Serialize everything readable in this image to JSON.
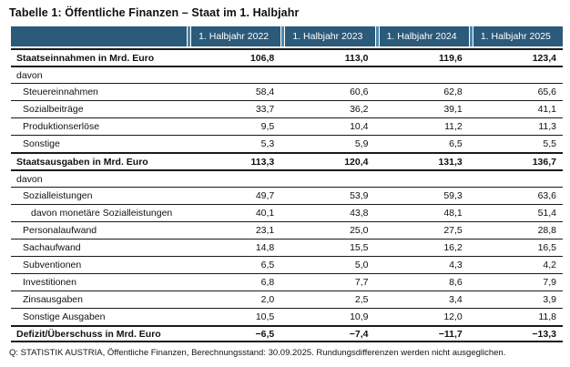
{
  "title": "Tabelle 1: Öffentliche Finanzen – Staat im 1. Halbjahr",
  "columns": [
    "1. Halbjahr 2022",
    "1. Halbjahr 2023",
    "1. Halbjahr 2024",
    "1. Halbjahr 2025"
  ],
  "rows": [
    {
      "label": "Staatseinnahmen in Mrd. Euro",
      "values": [
        "106,8",
        "113,0",
        "119,6",
        "123,4"
      ]
    },
    {
      "label": "davon",
      "values": [
        "",
        "",
        "",
        ""
      ]
    },
    {
      "label": "Steuereinnahmen",
      "values": [
        "58,4",
        "60,6",
        "62,8",
        "65,6"
      ]
    },
    {
      "label": "Sozialbeiträge",
      "values": [
        "33,7",
        "36,2",
        "39,1",
        "41,1"
      ]
    },
    {
      "label": "Produktionserlöse",
      "values": [
        "9,5",
        "10,4",
        "11,2",
        "11,3"
      ]
    },
    {
      "label": "Sonstige",
      "values": [
        "5,3",
        "5,9",
        "6,5",
        "5,5"
      ]
    },
    {
      "label": "Staatsausgaben in Mrd. Euro",
      "values": [
        "113,3",
        "120,4",
        "131,3",
        "136,7"
      ]
    },
    {
      "label": "davon",
      "values": [
        "",
        "",
        "",
        ""
      ]
    },
    {
      "label": "Sozialleistungen",
      "values": [
        "49,7",
        "53,9",
        "59,3",
        "63,6"
      ]
    },
    {
      "label": "davon monetäre Sozialleistungen",
      "values": [
        "40,1",
        "43,8",
        "48,1",
        "51,4"
      ]
    },
    {
      "label": "Personalaufwand",
      "values": [
        "23,1",
        "25,0",
        "27,5",
        "28,8"
      ]
    },
    {
      "label": "Sachaufwand",
      "values": [
        "14,8",
        "15,5",
        "16,2",
        "16,5"
      ]
    },
    {
      "label": "Subventionen",
      "values": [
        "6,5",
        "5,0",
        "4,3",
        "4,2"
      ]
    },
    {
      "label": "Investitionen",
      "values": [
        "6,8",
        "7,7",
        "8,6",
        "7,9"
      ]
    },
    {
      "label": "Zinsausgaben",
      "values": [
        "2,0",
        "2,5",
        "3,4",
        "3,9"
      ]
    },
    {
      "label": "Sonstige Ausgaben",
      "values": [
        "10,5",
        "10,9",
        "12,0",
        "11,8"
      ]
    },
    {
      "label": "Defizit/Überschuss in Mrd. Euro",
      "values": [
        "−6,5",
        "−7,4",
        "−11,7",
        "−13,3"
      ]
    }
  ],
  "footnote": "Q: STATISTIK AUSTRIA, Öffentliche Finanzen, Berechnungsstand: 30.09.2025. Rundungsdifferenzen werden nicht ausgeglichen.",
  "colors": {
    "header_bg": "#2B5A7A",
    "header_divider": "#4C87AE"
  },
  "chart_data": {
    "type": "table",
    "title": "Tabelle 1: Öffentliche Finanzen – Staat im 1. Halbjahr",
    "categories": [
      "1. Halbjahr 2022",
      "1. Halbjahr 2023",
      "1. Halbjahr 2024",
      "1. Halbjahr 2025"
    ],
    "series": [
      {
        "name": "Staatseinnahmen in Mrd. Euro",
        "values": [
          106.8,
          113.0,
          119.6,
          123.4
        ]
      },
      {
        "name": "Steuereinnahmen",
        "values": [
          58.4,
          60.6,
          62.8,
          65.6
        ]
      },
      {
        "name": "Sozialbeiträge",
        "values": [
          33.7,
          36.2,
          39.1,
          41.1
        ]
      },
      {
        "name": "Produktionserlöse",
        "values": [
          9.5,
          10.4,
          11.2,
          11.3
        ]
      },
      {
        "name": "Sonstige",
        "values": [
          5.3,
          5.9,
          6.5,
          5.5
        ]
      },
      {
        "name": "Staatsausgaben in Mrd. Euro",
        "values": [
          113.3,
          120.4,
          131.3,
          136.7
        ]
      },
      {
        "name": "Sozialleistungen",
        "values": [
          49.7,
          53.9,
          59.3,
          63.6
        ]
      },
      {
        "name": "davon monetäre Sozialleistungen",
        "values": [
          40.1,
          43.8,
          48.1,
          51.4
        ]
      },
      {
        "name": "Personalaufwand",
        "values": [
          23.1,
          25.0,
          27.5,
          28.8
        ]
      },
      {
        "name": "Sachaufwand",
        "values": [
          14.8,
          15.5,
          16.2,
          16.5
        ]
      },
      {
        "name": "Subventionen",
        "values": [
          6.5,
          5.0,
          4.3,
          4.2
        ]
      },
      {
        "name": "Investitionen",
        "values": [
          6.8,
          7.7,
          8.6,
          7.9
        ]
      },
      {
        "name": "Zinsausgaben",
        "values": [
          2.0,
          2.5,
          3.4,
          3.9
        ]
      },
      {
        "name": "Sonstige Ausgaben",
        "values": [
          10.5,
          10.9,
          12.0,
          11.8
        ]
      },
      {
        "name": "Defizit/Überschuss in Mrd. Euro",
        "values": [
          -6.5,
          -7.4,
          -11.7,
          -13.3
        ]
      }
    ]
  }
}
